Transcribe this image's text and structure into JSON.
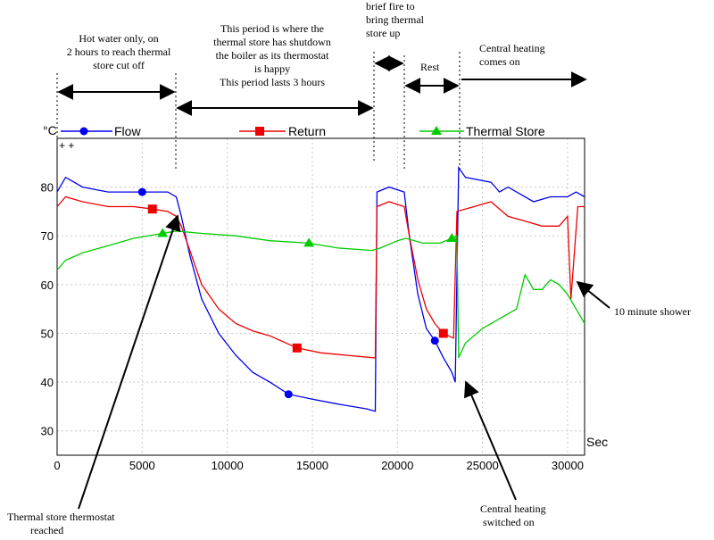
{
  "chart_data": {
    "type": "line",
    "units_label": "°C",
    "x_unit_label": "Sec",
    "xlim": [
      0,
      31000
    ],
    "ylim": [
      25,
      90
    ],
    "x_ticks": [
      0,
      5000,
      10000,
      15000,
      20000,
      25000,
      30000
    ],
    "y_ticks": [
      30,
      40,
      50,
      60,
      70,
      80
    ],
    "x_tick_labels": [
      "0",
      "5000",
      "10000",
      "15000",
      "20000",
      "25000",
      "30000"
    ],
    "y_tick_labels": [
      "30",
      "40",
      "50",
      "60",
      "70",
      "80"
    ],
    "series": [
      {
        "name": "Flow",
        "color": "#0000ee",
        "marker": "circle",
        "marker_points": [
          [
            5000,
            79
          ],
          [
            13600,
            37.5
          ],
          [
            22200,
            48.5
          ]
        ],
        "values": [
          [
            0,
            79
          ],
          [
            500,
            82
          ],
          [
            1500,
            80
          ],
          [
            3000,
            79
          ],
          [
            4500,
            79
          ],
          [
            5500,
            79
          ],
          [
            6500,
            79
          ],
          [
            7000,
            78
          ],
          [
            7300,
            74
          ],
          [
            7800,
            66
          ],
          [
            8500,
            57
          ],
          [
            9500,
            50
          ],
          [
            10500,
            45.5
          ],
          [
            11500,
            42
          ],
          [
            12500,
            40
          ],
          [
            13600,
            37.5
          ],
          [
            15000,
            36.5
          ],
          [
            16500,
            35.5
          ],
          [
            18200,
            34.5
          ],
          [
            18700,
            34
          ],
          [
            18800,
            79
          ],
          [
            19500,
            80
          ],
          [
            20400,
            79
          ],
          [
            20700,
            70
          ],
          [
            21200,
            58
          ],
          [
            21700,
            51
          ],
          [
            22200,
            48.5
          ],
          [
            22700,
            45
          ],
          [
            23200,
            42
          ],
          [
            23400,
            40
          ],
          [
            23600,
            84
          ],
          [
            24000,
            82
          ],
          [
            25500,
            81
          ],
          [
            26000,
            79
          ],
          [
            26500,
            80
          ],
          [
            28000,
            77
          ],
          [
            29000,
            78
          ],
          [
            30000,
            78
          ],
          [
            30500,
            79
          ],
          [
            31000,
            78
          ]
        ]
      },
      {
        "name": "Return",
        "color": "#ee0000",
        "marker": "square",
        "marker_points": [
          [
            5600,
            75.5
          ],
          [
            14100,
            47
          ],
          [
            22700,
            50
          ]
        ],
        "values": [
          [
            0,
            76
          ],
          [
            500,
            78
          ],
          [
            1500,
            77
          ],
          [
            3000,
            76
          ],
          [
            4500,
            76
          ],
          [
            5600,
            75.5
          ],
          [
            6500,
            75
          ],
          [
            7000,
            74
          ],
          [
            7300,
            72
          ],
          [
            7800,
            67
          ],
          [
            8500,
            60
          ],
          [
            9500,
            55
          ],
          [
            10500,
            52
          ],
          [
            11500,
            50.5
          ],
          [
            12500,
            49.5
          ],
          [
            14100,
            47
          ],
          [
            15500,
            46
          ],
          [
            17000,
            45.5
          ],
          [
            18600,
            45
          ],
          [
            18700,
            45
          ],
          [
            18800,
            76
          ],
          [
            19500,
            77
          ],
          [
            20400,
            76
          ],
          [
            20700,
            70
          ],
          [
            21200,
            61
          ],
          [
            21700,
            55
          ],
          [
            22200,
            52
          ],
          [
            22700,
            50
          ],
          [
            23300,
            49
          ],
          [
            23500,
            75
          ],
          [
            24500,
            76
          ],
          [
            25500,
            77
          ],
          [
            26500,
            74
          ],
          [
            27500,
            73
          ],
          [
            28500,
            72
          ],
          [
            29500,
            72
          ],
          [
            30000,
            74
          ],
          [
            30200,
            57
          ],
          [
            30600,
            76
          ],
          [
            31000,
            76
          ]
        ]
      },
      {
        "name": "Thermal Store",
        "color": "#00cc00",
        "marker": "triangle",
        "marker_points": [
          [
            6200,
            70.5
          ],
          [
            14800,
            68.5
          ],
          [
            23200,
            69.5
          ]
        ],
        "values": [
          [
            0,
            63
          ],
          [
            500,
            65
          ],
          [
            1500,
            66.5
          ],
          [
            3000,
            68
          ],
          [
            4500,
            69.5
          ],
          [
            6200,
            70.5
          ],
          [
            7000,
            71
          ],
          [
            8500,
            70.5
          ],
          [
            10500,
            70
          ],
          [
            12500,
            69
          ],
          [
            14800,
            68.5
          ],
          [
            16500,
            67.5
          ],
          [
            18500,
            67
          ],
          [
            19000,
            67.5
          ],
          [
            20000,
            69
          ],
          [
            20500,
            69.5
          ],
          [
            21500,
            68.5
          ],
          [
            22500,
            68.5
          ],
          [
            23200,
            69.5
          ],
          [
            23500,
            70
          ],
          [
            23600,
            45
          ],
          [
            24000,
            48
          ],
          [
            25000,
            51
          ],
          [
            26000,
            53
          ],
          [
            27000,
            55
          ],
          [
            27500,
            62
          ],
          [
            28000,
            59
          ],
          [
            28500,
            59
          ],
          [
            29000,
            61
          ],
          [
            29500,
            60
          ],
          [
            30000,
            58
          ],
          [
            30500,
            55
          ],
          [
            31000,
            52
          ]
        ]
      }
    ],
    "annotations": [
      {
        "name": "hot-water-only",
        "text": [
          "Hot water only, on",
          "2 hours to reach thermal",
          "store cut off"
        ]
      },
      {
        "name": "thermostat-happy",
        "text": [
          "This period is where the",
          "thermal store has shutdown",
          "the boiler as its thermostat",
          "is happy",
          "This period lasts 3 hours"
        ]
      },
      {
        "name": "brief-fire",
        "text": [
          "brief fire to",
          "bring thermal",
          "store up"
        ]
      },
      {
        "name": "rest",
        "text": [
          "Rest"
        ]
      },
      {
        "name": "central-heating-on",
        "text": [
          "Central heating",
          "comes on"
        ]
      },
      {
        "name": "ten-minute-shower",
        "text": [
          "10 minute shower"
        ]
      },
      {
        "name": "thermostat-reached",
        "text": [
          "Thermal store thermostat",
          "reached"
        ]
      },
      {
        "name": "central-heating-switched",
        "text": [
          "Central heating",
          "switched on"
        ]
      }
    ],
    "plot_marks": [
      "+ +"
    ]
  }
}
